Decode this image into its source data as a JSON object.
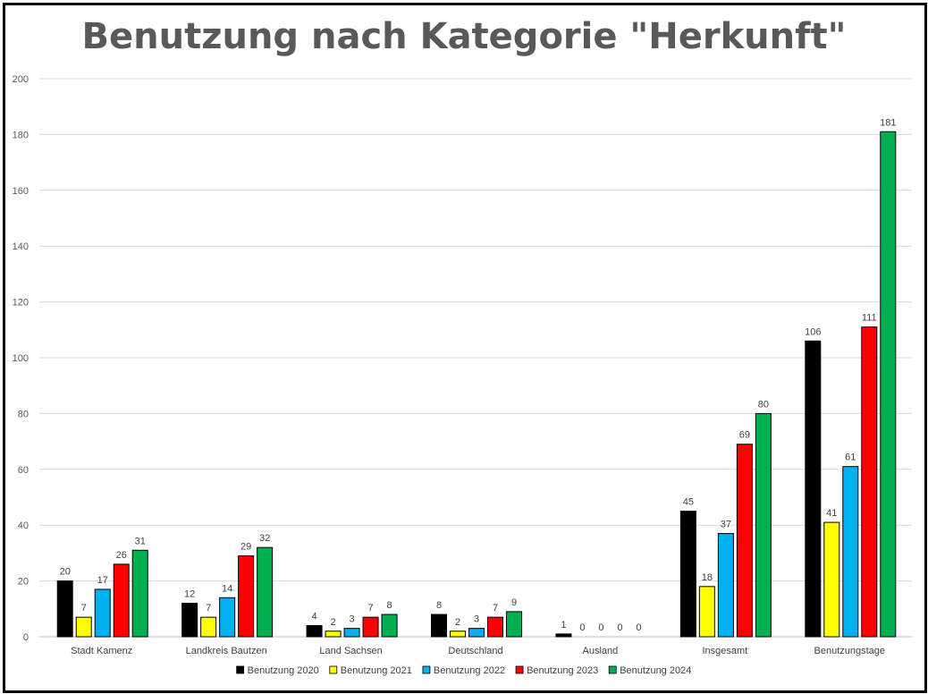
{
  "chart_data": {
    "type": "bar",
    "title": "Benutzung nach Kategorie \"Herkunft\"",
    "xlabel": "",
    "ylabel": "",
    "ylim": [
      0,
      200
    ],
    "yticks": [
      0,
      20,
      40,
      60,
      80,
      100,
      120,
      140,
      160,
      180,
      200
    ],
    "grid": true,
    "legend_position": "bottom",
    "categories": [
      "Stadt Kamenz",
      "Landkreis Bautzen",
      "Land Sachsen",
      "Deutschland",
      "Ausland",
      "Insgesamt",
      "Benutzungstage"
    ],
    "series": [
      {
        "name": "Benutzung 2020",
        "color": "#000000",
        "values": [
          20,
          12,
          4,
          8,
          1,
          45,
          106
        ]
      },
      {
        "name": "Benutzung 2021",
        "color": "#FFFF00",
        "values": [
          7,
          7,
          2,
          2,
          0,
          18,
          41
        ]
      },
      {
        "name": "Benutzung 2022",
        "color": "#00B0F0",
        "values": [
          17,
          14,
          3,
          3,
          0,
          37,
          61
        ]
      },
      {
        "name": "Benutzung 2023",
        "color": "#FF0000",
        "values": [
          26,
          29,
          7,
          7,
          0,
          69,
          111
        ]
      },
      {
        "name": "Benutzung 2024",
        "color": "#00B050",
        "values": [
          31,
          32,
          8,
          9,
          0,
          80,
          181
        ]
      }
    ]
  }
}
